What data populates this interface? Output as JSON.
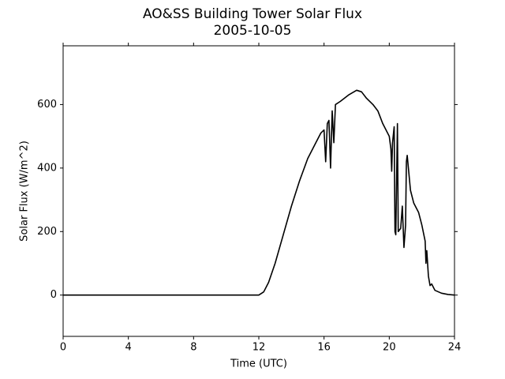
{
  "chart_data": {
    "type": "line",
    "title": "AO&SS Building Tower Solar Flux",
    "subtitle": "2005-10-05",
    "x_label": "Time (UTC)",
    "y_label": "Solar Flux (W/m^2)",
    "xlim": [
      0,
      24
    ],
    "xticks": [
      0,
      4,
      8,
      12,
      16,
      20,
      24
    ],
    "ylim": [
      -130,
      785
    ],
    "yticks": [
      0,
      200,
      400,
      600
    ],
    "grid": false,
    "series": [
      {
        "name": "Solar Flux",
        "color": "#000000",
        "x": [
          0,
          12.0,
          12.3,
          12.6,
          13.0,
          13.5,
          14.0,
          14.5,
          15.0,
          15.5,
          15.8,
          16.0,
          16.1,
          16.2,
          16.3,
          16.4,
          16.5,
          16.6,
          16.7,
          17.0,
          17.5,
          18.0,
          18.3,
          18.6,
          19.0,
          19.3,
          19.6,
          20.0,
          20.1,
          20.15,
          20.2,
          20.3,
          20.35,
          20.4,
          20.5,
          20.55,
          20.7,
          20.8,
          20.9,
          21.0,
          21.05,
          21.1,
          21.3,
          21.5,
          21.8,
          22.0,
          22.2,
          22.25,
          22.3,
          22.4,
          22.5,
          22.6,
          22.8,
          23.2,
          23.6,
          24.0
        ],
        "values": [
          0,
          0,
          10,
          40,
          100,
          190,
          280,
          360,
          430,
          480,
          510,
          520,
          420,
          540,
          550,
          400,
          580,
          480,
          600,
          610,
          630,
          645,
          640,
          620,
          600,
          580,
          540,
          500,
          460,
          390,
          480,
          530,
          200,
          190,
          540,
          200,
          210,
          280,
          150,
          220,
          420,
          440,
          330,
          290,
          260,
          220,
          170,
          100,
          140,
          60,
          30,
          35,
          15,
          6,
          2,
          0
        ]
      }
    ]
  }
}
